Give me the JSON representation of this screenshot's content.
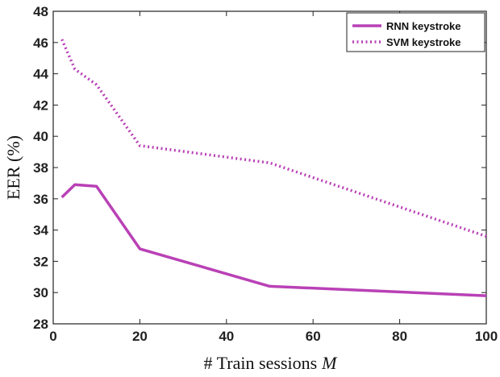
{
  "chart_data": {
    "type": "line",
    "title": "",
    "xlabel": "# Train sessions",
    "xlabel_var": "M",
    "ylabel": "EER (%)",
    "xlim": [
      0,
      100
    ],
    "ylim": [
      28,
      48
    ],
    "xticks": [
      0,
      20,
      40,
      60,
      80,
      100
    ],
    "yticks": [
      28,
      30,
      32,
      34,
      36,
      38,
      40,
      42,
      44,
      46,
      48
    ],
    "grid": false,
    "legend_position": "top-right",
    "color": "#b941b6",
    "series": [
      {
        "name": "RNN keystroke",
        "style": "solid",
        "x": [
          2,
          5,
          10,
          20,
          50,
          100
        ],
        "y": [
          36.1,
          36.9,
          36.8,
          32.8,
          30.4,
          29.8
        ]
      },
      {
        "name": "SVM keystroke",
        "style": "dotted",
        "x": [
          2,
          5,
          10,
          20,
          50,
          100
        ],
        "y": [
          46.2,
          44.3,
          43.3,
          39.4,
          38.3,
          33.6
        ]
      }
    ]
  }
}
